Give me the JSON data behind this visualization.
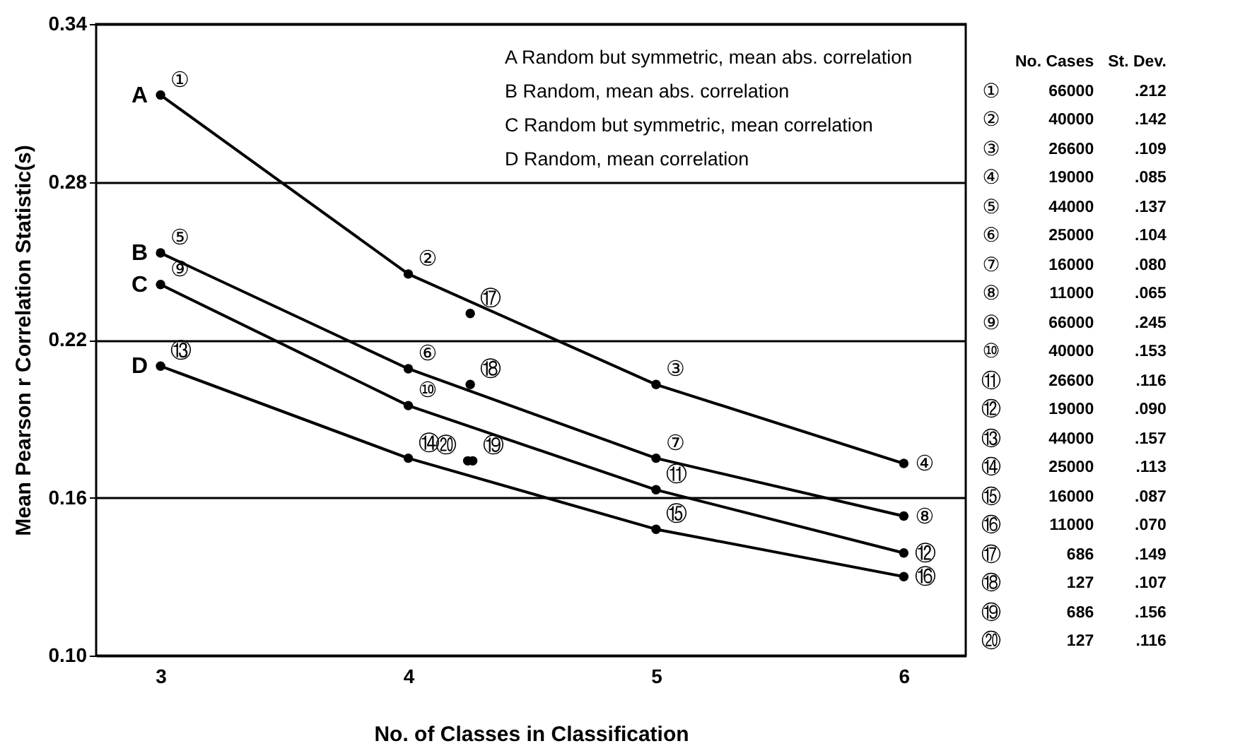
{
  "chart_data": {
    "type": "line",
    "xlabel": "No. of Classes in Classification",
    "ylabel": "Mean Pearson r Correlation Statistic(s)",
    "x": [
      3,
      4,
      5,
      6
    ],
    "xlim": [
      2.74,
      6.25
    ],
    "xticks": [
      3,
      4,
      5,
      6
    ],
    "ylim": [
      0.1,
      0.34
    ],
    "yticks": [
      {
        "value": 0.1,
        "label": "0.10"
      },
      0.16,
      0.22,
      0.28,
      0.34
    ],
    "grid": "y",
    "marker": "circle",
    "line_style": "solid",
    "series": [
      {
        "name": "A",
        "color": "#000000",
        "values": [
          0.313,
          0.245,
          0.203,
          0.173
        ]
      },
      {
        "name": "B",
        "color": "#000000",
        "values": [
          0.253,
          0.209,
          0.175,
          0.153
        ]
      },
      {
        "name": "C",
        "color": "#000000",
        "values": [
          0.241,
          0.195,
          0.163,
          0.139
        ]
      },
      {
        "name": "D",
        "color": "#000000",
        "values": [
          0.21,
          0.175,
          0.148,
          0.13
        ]
      },
      {
        "type": "scatter",
        "color": "#000000",
        "x": [
          4.25,
          4.25,
          4.26,
          4.24
        ],
        "values": [
          0.23,
          0.203,
          0.174,
          0.174
        ]
      }
    ],
    "annotations": [
      "A Random but symmetric, mean abs. correlation",
      "B Random, mean abs. correlation",
      "C Random but symmetric, mean correlation",
      "D Random, mean correlation",
      "No. Cases",
      "St. Dev.",
      "① 66000 .212",
      "② 40000 .142",
      "③ 26600 .109",
      "④ 19000 .085",
      "⑤ 44000 .137",
      "⑥ 25000 .104",
      "⑦ 16000 .080",
      "⑧ 11000 .065",
      "⑨ 66000 .245",
      "⑩ 40000 .153",
      "⑪ 26600 .116",
      "⑫ 19000 .090",
      "⑬ 44000 .157",
      "⑭ 25000 .113",
      "⑮ 16000 .087",
      "⑯ 11000 .070",
      "⑰ 686 .149",
      "⑱ 127 .107",
      "⑲ 686 .156",
      "⑳ 127 .116",
      {
        "text": "①",
        "x": 3,
        "y": 0.313
      },
      {
        "text": "②",
        "x": 4,
        "y": 0.245
      },
      {
        "text": "③",
        "x": 5,
        "y": 0.203
      },
      {
        "text": "④",
        "x": 6,
        "y": 0.173
      },
      {
        "text": "⑤",
        "x": 3,
        "y": 0.253
      },
      {
        "text": "⑥",
        "x": 4,
        "y": 0.209
      },
      {
        "text": "⑦",
        "x": 5,
        "y": 0.175
      },
      {
        "text": "⑧",
        "x": 6,
        "y": 0.153
      },
      {
        "text": "⑨",
        "x": 3,
        "y": 0.241
      },
      {
        "text": "⑩",
        "x": 4,
        "y": 0.195
      },
      {
        "text": "⑪",
        "x": 5,
        "y": 0.163
      },
      {
        "text": "⑫",
        "x": 6,
        "y": 0.139
      },
      {
        "text": "⑬",
        "x": 3,
        "y": 0.21
      },
      {
        "text": "⑭",
        "x": 4,
        "y": 0.175
      },
      {
        "text": "⑮",
        "x": 5,
        "y": 0.148
      },
      {
        "text": "⑯",
        "x": 6,
        "y": 0.13
      },
      {
        "text": "⑰",
        "x": 4.25,
        "y": 0.23
      },
      {
        "text": "⑱",
        "x": 4.25,
        "y": 0.203
      },
      {
        "text": "⑲",
        "x": 4.26,
        "y": 0.174
      },
      {
        "text": "⑳",
        "x": 4.24,
        "y": 0.174
      }
    ]
  }
}
